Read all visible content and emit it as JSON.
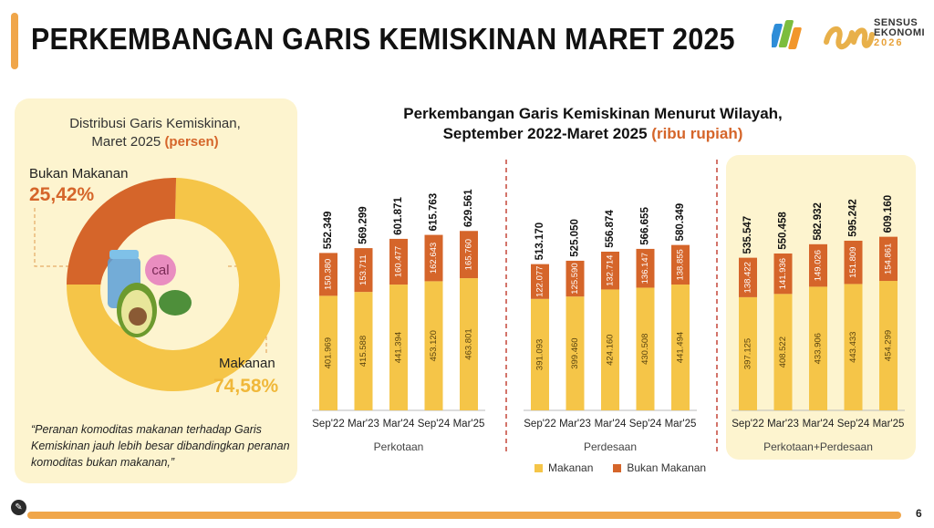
{
  "page": {
    "title": "PERKEMBANGAN GARIS KEMISKINAN MARET 2025",
    "page_number": "6",
    "accent_color": "#f0a64a"
  },
  "logo": {
    "line1": "SENSUS",
    "line2": "EKONOMI",
    "line3": "2026"
  },
  "donut": {
    "title_line1": "Distribusi Garis Kemiskinan,",
    "title_line2": "Maret 2025",
    "title_unit": "(persen)",
    "center_badge": "cal",
    "segments": [
      {
        "label": "Bukan Makanan",
        "value_text": "25,42%",
        "value": 25.42,
        "color": "#d5652a"
      },
      {
        "label": "Makanan",
        "value_text": "74,58%",
        "value": 74.58,
        "color": "#f5c548"
      }
    ],
    "quote": "“Peranan komoditas makanan terhadap Garis Kemiskinan jauh lebih besar dibandingkan peranan komoditas bukan makanan,”"
  },
  "chart_data": {
    "type": "bar",
    "stacked": true,
    "title_line1": "Perkembangan Garis Kemiskinan Menurut Wilayah,",
    "title_line2": "September 2022-Maret 2025",
    "title_unit": "(ribu rupiah)",
    "categories": [
      "Sep'22",
      "Mar'23",
      "Mar'24",
      "Sep'24",
      "Mar'25"
    ],
    "ylim": [
      0,
      640
    ],
    "colors": {
      "makanan": "#f5c548",
      "bukan_makanan": "#d5652a"
    },
    "legend": [
      "Makanan",
      "Bukan Makanan"
    ],
    "groups": [
      {
        "name": "Perkotaan",
        "makanan": [
          401.969,
          415.588,
          441.394,
          453.12,
          463.801
        ],
        "makanan_labels": [
          "401.969",
          "415.588",
          "441.394",
          "453.120",
          "463.801"
        ],
        "bukan_makanan": [
          150.38,
          153.711,
          160.477,
          162.643,
          165.76
        ],
        "bukan_makanan_labels": [
          "150.380",
          "153.711",
          "160.477",
          "162.643",
          "165.760"
        ],
        "totals": [
          "552.349",
          "569.299",
          "601.871",
          "615.763",
          "629.561"
        ]
      },
      {
        "name": "Perdesaan",
        "makanan": [
          391.093,
          399.46,
          424.16,
          430.508,
          441.494
        ],
        "makanan_labels": [
          "391.093",
          "399.460",
          "424.160",
          "430.508",
          "441.494"
        ],
        "bukan_makanan": [
          122.077,
          125.59,
          132.714,
          136.147,
          138.855
        ],
        "bukan_makanan_labels": [
          "122.077",
          "125.590",
          "132.714",
          "136.147",
          "138.855"
        ],
        "totals": [
          "513.170",
          "525.050",
          "556.874",
          "566.655",
          "580.349"
        ]
      },
      {
        "name": "Perkotaan+Perdesaan",
        "makanan": [
          397.125,
          408.522,
          433.906,
          443.433,
          454.299
        ],
        "makanan_labels": [
          "397.125",
          "408.522",
          "433.906",
          "443.433",
          "454.299"
        ],
        "bukan_makanan": [
          138.422,
          141.936,
          149.026,
          151.809,
          154.861
        ],
        "bukan_makanan_labels": [
          "138.422",
          "141.936",
          "149.026",
          "151.809",
          "154.861"
        ],
        "totals": [
          "535.547",
          "550.458",
          "582.932",
          "595.242",
          "609.160"
        ]
      }
    ]
  }
}
